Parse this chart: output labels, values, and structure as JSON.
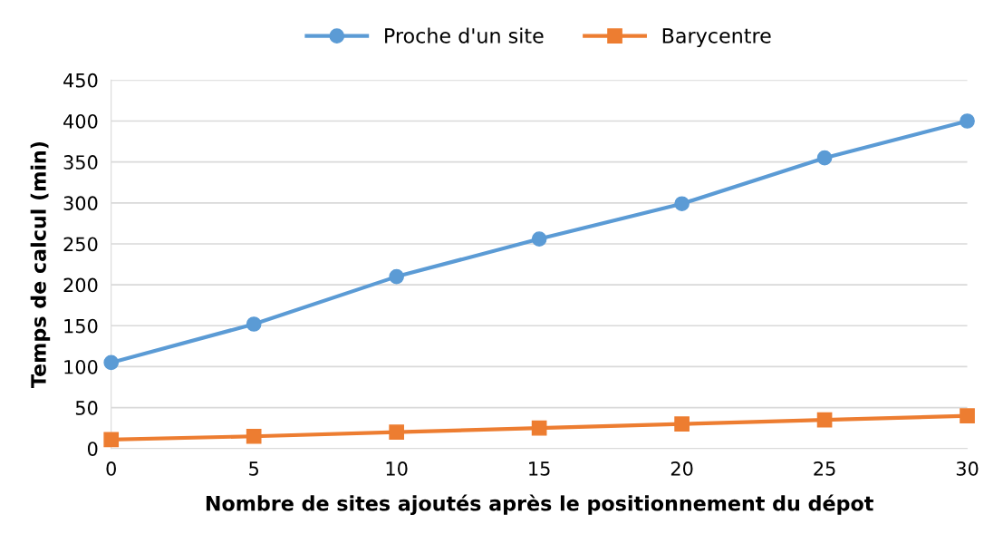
{
  "chart_data": {
    "type": "line",
    "xlabel": "Nombre de sites ajoutés après le positionnement du dépot",
    "ylabel": "Temps de calcul (min)",
    "x": [
      0,
      5,
      10,
      15,
      20,
      25,
      30
    ],
    "series": [
      {
        "name": "Proche d'un site",
        "color": "#5b9bd5",
        "marker": "circle",
        "values": [
          105,
          152,
          210,
          256,
          299,
          355,
          400
        ]
      },
      {
        "name": "Barycentre",
        "color": "#ed7d31",
        "marker": "square",
        "values": [
          11,
          15,
          20,
          25,
          30,
          35,
          40
        ]
      }
    ],
    "xlim": [
      0,
      30
    ],
    "xticks": [
      0,
      5,
      10,
      15,
      20,
      25,
      30
    ],
    "ylim": [
      0,
      450
    ],
    "yticks": [
      0,
      50,
      100,
      150,
      200,
      250,
      300,
      350,
      400,
      450
    ],
    "grid": "y",
    "legend": "top",
    "line_style": "solid"
  }
}
